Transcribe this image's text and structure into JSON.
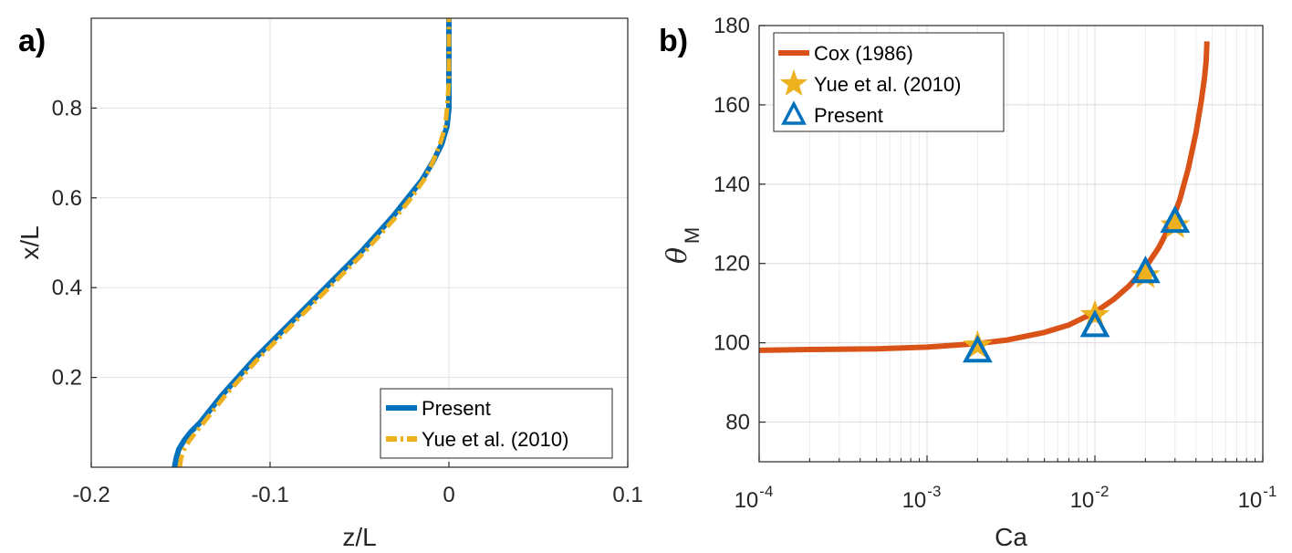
{
  "chart_data": [
    {
      "type": "line",
      "panel_label": "a)",
      "xlabel": "z/L",
      "ylabel": "x/L",
      "xlim": [
        -0.2,
        0.1
      ],
      "ylim": [
        0.0,
        1.0
      ],
      "xticks": [
        -0.2,
        -0.1,
        0,
        0.1
      ],
      "xtick_labels": [
        "-0.2",
        "-0.1",
        "0",
        "0.1"
      ],
      "yticks": [
        0.2,
        0.4,
        0.6,
        0.8
      ],
      "ytick_labels": [
        "0.2",
        "0.4",
        "0.6",
        "0.8"
      ],
      "grid": true,
      "legend_location": "bottom-right",
      "series": [
        {
          "name": "Present",
          "color": "#0072BD",
          "style": "solid",
          "points": [
            [
              -0.1534,
              0.0
            ],
            [
              -0.1525,
              0.02
            ],
            [
              -0.151,
              0.04
            ],
            [
              -0.148,
              0.06
            ],
            [
              -0.144,
              0.08
            ],
            [
              -0.139,
              0.1
            ],
            [
              -0.133,
              0.13
            ],
            [
              -0.127,
              0.16
            ],
            [
              -0.118,
              0.2
            ],
            [
              -0.109,
              0.24
            ],
            [
              -0.099,
              0.28
            ],
            [
              -0.089,
              0.32
            ],
            [
              -0.079,
              0.36
            ],
            [
              -0.069,
              0.4
            ],
            [
              -0.059,
              0.44
            ],
            [
              -0.049,
              0.48
            ],
            [
              -0.04,
              0.52
            ],
            [
              -0.031,
              0.56
            ],
            [
              -0.023,
              0.6
            ],
            [
              -0.015,
              0.64
            ],
            [
              -0.009,
              0.68
            ],
            [
              -0.004,
              0.72
            ],
            [
              -0.001,
              0.76
            ],
            [
              0.0,
              0.8
            ],
            [
              0.0,
              0.86
            ],
            [
              0.0,
              0.92
            ],
            [
              0.0,
              1.0
            ]
          ]
        },
        {
          "name": "Yue et al. (2010)",
          "color": "#EDB120",
          "style": "dashdot",
          "points": [
            [
              -0.1505,
              0.0
            ],
            [
              -0.1498,
              0.02
            ],
            [
              -0.148,
              0.04
            ],
            [
              -0.145,
              0.06
            ],
            [
              -0.141,
              0.08
            ],
            [
              -0.137,
              0.1
            ],
            [
              -0.131,
              0.13
            ],
            [
              -0.125,
              0.16
            ],
            [
              -0.116,
              0.2
            ],
            [
              -0.107,
              0.24
            ],
            [
              -0.097,
              0.28
            ],
            [
              -0.087,
              0.32
            ],
            [
              -0.077,
              0.36
            ],
            [
              -0.067,
              0.4
            ],
            [
              -0.057,
              0.44
            ],
            [
              -0.047,
              0.48
            ],
            [
              -0.038,
              0.52
            ],
            [
              -0.029,
              0.56
            ],
            [
              -0.021,
              0.6
            ],
            [
              -0.014,
              0.64
            ],
            [
              -0.009,
              0.68
            ],
            [
              -0.005,
              0.72
            ],
            [
              -0.002,
              0.76
            ],
            [
              -0.001,
              0.8
            ],
            [
              0.0,
              0.86
            ],
            [
              0.0,
              0.92
            ],
            [
              0.0,
              1.0
            ]
          ]
        }
      ]
    },
    {
      "type": "line",
      "panel_label": "b)",
      "xlabel": "Ca",
      "ylabel": "θ",
      "ylabel_subscript": "M",
      "xscale": "log",
      "xlim": [
        0.0001,
        0.1
      ],
      "ylim": [
        70,
        180
      ],
      "xtick_base": "10",
      "xtick_exponents": [
        "-4",
        "-3",
        "-2",
        "-1"
      ],
      "yticks": [
        80,
        100,
        120,
        140,
        160,
        180
      ],
      "ytick_labels": [
        "80",
        "100",
        "120",
        "140",
        "160",
        "180"
      ],
      "grid": true,
      "legend_location": "top-left",
      "series": [
        {
          "name": "Cox (1986)",
          "color": "#D95319",
          "marker": "line",
          "x": [
            0.0001,
            0.0002,
            0.0005,
            0.001,
            0.002,
            0.003,
            0.005,
            0.007,
            0.01,
            0.013,
            0.016,
            0.02,
            0.024,
            0.028,
            0.032,
            0.036,
            0.04,
            0.043,
            0.045,
            0.046,
            0.0465
          ],
          "y": [
            98.1,
            98.3,
            98.5,
            98.9,
            99.8,
            100.7,
            102.6,
            104.5,
            107.7,
            111.0,
            114.4,
            119.0,
            124.0,
            129.5,
            136.0,
            144.0,
            153.0,
            161.0,
            167.0,
            171.0,
            176.0
          ]
        },
        {
          "name": "Yue et al. (2010)",
          "color": "#EDB120",
          "marker": "star",
          "x": [
            0.002,
            0.01,
            0.02,
            0.03
          ],
          "y": [
            99.3,
            107.0,
            117.0,
            129.6
          ]
        },
        {
          "name": "Present",
          "color": "#0072BD",
          "marker": "triangle",
          "x": [
            0.002,
            0.01,
            0.02,
            0.03
          ],
          "y": [
            97.8,
            104.2,
            117.8,
            130.5
          ]
        }
      ]
    }
  ]
}
